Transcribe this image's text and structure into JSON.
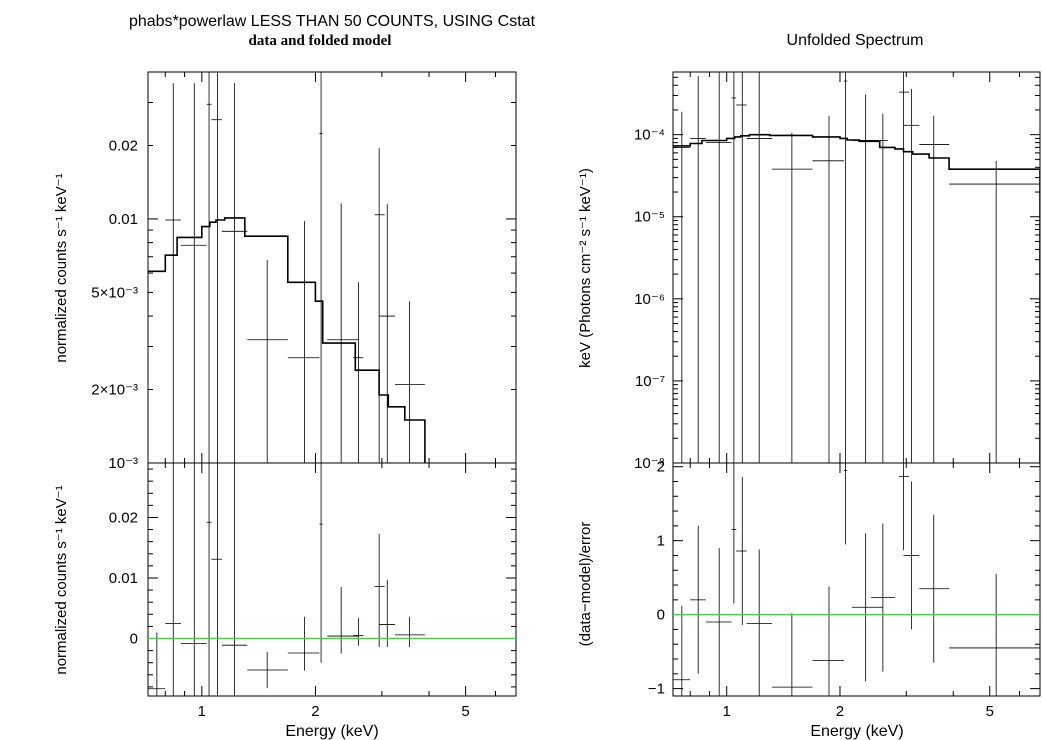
{
  "chart_data": [
    {
      "id": "folded-top",
      "type": "line",
      "title": "phabs*powerlaw LESS THAN 50 COUNTS, USING Cstat",
      "subtitle": "data and folded model",
      "xlabel": "",
      "ylabel": "normalized counts s⁻¹ keV⁻¹",
      "xscale": "log",
      "yscale": "log",
      "xlim": [
        0.72,
        6.8
      ],
      "ylim": [
        0.001,
        0.04
      ],
      "yticks": [
        {
          "v": 0.02,
          "label": "0.02"
        },
        {
          "v": 0.01,
          "label": "0.01"
        },
        {
          "v": 0.005,
          "label": "5×10⁻³"
        },
        {
          "v": 0.002,
          "label": "2×10⁻³"
        },
        {
          "v": 0.001,
          "label": "10⁻³"
        }
      ],
      "xticks": [
        {
          "v": 1,
          "label": ""
        },
        {
          "v": 2,
          "label": ""
        },
        {
          "v": 5,
          "label": ""
        }
      ],
      "series": [
        {
          "kind": "data",
          "color": "#000000",
          "points": [
            {
              "x": 0.76,
              "xlo": 0.72,
              "xhi": 0.8,
              "y": 0.0002,
              "ylo": 0.0001,
              "yhi": 0.0009
            },
            {
              "x": 0.84,
              "xlo": 0.8,
              "xhi": 0.88,
              "y": 0.0099,
              "ylo": 0.001,
              "yhi": 0.036
            },
            {
              "x": 0.955,
              "xlo": 0.88,
              "xhi": 1.03,
              "y": 0.0078,
              "ylo": 0.001,
              "yhi": 0.036
            },
            {
              "x": 1.045,
              "xlo": 1.03,
              "xhi": 1.06,
              "y": 0.0295,
              "ylo": 0.001,
              "yhi": 0.04
            },
            {
              "x": 1.1,
              "xlo": 1.06,
              "xhi": 1.13,
              "y": 0.0255,
              "ylo": 0.001,
              "yhi": 0.04
            },
            {
              "x": 1.22,
              "xlo": 1.13,
              "xhi": 1.32,
              "y": 0.0089,
              "ylo": 0.001,
              "yhi": 0.036
            },
            {
              "x": 1.49,
              "xlo": 1.32,
              "xhi": 1.69,
              "y": 0.0032,
              "ylo": 0.001,
              "yhi": 0.0068
            },
            {
              "x": 1.87,
              "xlo": 1.69,
              "xhi": 2.05,
              "y": 0.0027,
              "ylo": 0.001,
              "yhi": 0.0098
            },
            {
              "x": 2.07,
              "xlo": 2.05,
              "xhi": 2.09,
              "y": 0.0224,
              "ylo": 0.001,
              "yhi": 0.04
            },
            {
              "x": 2.34,
              "xlo": 2.15,
              "xhi": 2.6,
              "y": 0.0032,
              "ylo": 0.001,
              "yhi": 0.0116
            },
            {
              "x": 2.6,
              "xlo": 2.52,
              "xhi": 2.68,
              "y": 0.0027,
              "ylo": 0.001,
              "yhi": 0.0055
            },
            {
              "x": 2.95,
              "xlo": 2.87,
              "xhi": 3.05,
              "y": 0.0104,
              "ylo": 0.001,
              "yhi": 0.0195
            },
            {
              "x": 3.1,
              "xlo": 2.95,
              "xhi": 3.25,
              "y": 0.004,
              "ylo": 0.001,
              "yhi": 0.0115
            },
            {
              "x": 3.55,
              "xlo": 3.25,
              "xhi": 3.9,
              "y": 0.0021,
              "ylo": 0.001,
              "yhi": 0.0046
            }
          ]
        },
        {
          "kind": "model",
          "color": "#000000",
          "edges": [
            0.72,
            0.8,
            0.86,
            1.0,
            1.05,
            1.09,
            1.15,
            1.3,
            1.69,
            2.0,
            2.09,
            2.25,
            2.55,
            2.8,
            2.95,
            3.12,
            3.45,
            3.9
          ],
          "values": [
            0.0061,
            0.0071,
            0.0084,
            0.0093,
            0.0097,
            0.0099,
            0.0101,
            0.0085,
            0.0055,
            0.0046,
            0.0031,
            0.0031,
            0.0024,
            0.0024,
            0.0019,
            0.0017,
            0.0015
          ]
        }
      ]
    },
    {
      "id": "folded-bottom",
      "type": "line",
      "title": "",
      "xlabel": "Energy (keV)",
      "ylabel": "normalized counts s⁻¹ keV⁻¹",
      "xscale": "log",
      "yscale": "linear",
      "xlim": [
        0.72,
        6.8
      ],
      "ylim": [
        -0.0095,
        0.029
      ],
      "yticks": [
        {
          "v": 0.02,
          "label": "0.02"
        },
        {
          "v": 0.01,
          "label": "0.01"
        },
        {
          "v": 0,
          "label": "0"
        }
      ],
      "xticks": [
        {
          "v": 1,
          "label": "1"
        },
        {
          "v": 2,
          "label": "2"
        },
        {
          "v": 5,
          "label": "5"
        }
      ],
      "series": [
        {
          "kind": "data",
          "color": "#000000",
          "points": [
            {
              "x": 0.76,
              "xlo": 0.72,
              "xhi": 0.8,
              "y": -0.0083,
              "ylo": -0.012,
              "yhi": 0.001
            },
            {
              "x": 0.84,
              "xlo": 0.8,
              "xhi": 0.88,
              "y": 0.0025,
              "ylo": -0.012,
              "yhi": 0.029
            },
            {
              "x": 0.955,
              "xlo": 0.88,
              "xhi": 1.03,
              "y": -0.0008,
              "ylo": -0.012,
              "yhi": 0.029
            },
            {
              "x": 1.045,
              "xlo": 1.03,
              "xhi": 1.06,
              "y": 0.0192,
              "ylo": -0.012,
              "yhi": 0.029
            },
            {
              "x": 1.1,
              "xlo": 1.06,
              "xhi": 1.13,
              "y": 0.0131,
              "ylo": -0.012,
              "yhi": 0.029
            },
            {
              "x": 1.22,
              "xlo": 1.13,
              "xhi": 1.32,
              "y": -0.0011,
              "ylo": -0.012,
              "yhi": 0.029
            },
            {
              "x": 1.49,
              "xlo": 1.32,
              "xhi": 1.69,
              "y": -0.0052,
              "ylo": -0.0082,
              "yhi": -0.0022
            },
            {
              "x": 1.87,
              "xlo": 1.69,
              "xhi": 2.05,
              "y": -0.0024,
              "ylo": -0.0053,
              "yhi": 0.0036
            },
            {
              "x": 2.07,
              "xlo": 2.05,
              "xhi": 2.09,
              "y": 0.0189,
              "ylo": -0.004,
              "yhi": 0.029
            },
            {
              "x": 2.34,
              "xlo": 2.15,
              "xhi": 2.6,
              "y": 0.0004,
              "ylo": -0.0025,
              "yhi": 0.0085
            },
            {
              "x": 2.6,
              "xlo": 2.52,
              "xhi": 2.68,
              "y": 0.0005,
              "ylo": -0.0012,
              "yhi": 0.0034
            },
            {
              "x": 2.95,
              "xlo": 2.87,
              "xhi": 3.05,
              "y": 0.0086,
              "ylo": -0.0014,
              "yhi": 0.0173
            },
            {
              "x": 3.1,
              "xlo": 2.95,
              "xhi": 3.25,
              "y": 0.0023,
              "ylo": -0.0014,
              "yhi": 0.0097
            },
            {
              "x": 3.55,
              "xlo": 3.25,
              "xhi": 3.9,
              "y": 0.0006,
              "ylo": -0.0014,
              "yhi": 0.0036
            }
          ]
        },
        {
          "kind": "zero-line",
          "color": "#33dd33",
          "y": 0
        }
      ]
    },
    {
      "id": "unfolded-top",
      "type": "line",
      "title": "Unfolded Spectrum",
      "xlabel": "",
      "ylabel": "keV (Photons cm⁻² s⁻¹ keV⁻¹)",
      "xscale": "log",
      "yscale": "log",
      "xlim": [
        0.72,
        6.8
      ],
      "ylim": [
        1e-08,
        0.00058
      ],
      "yticks": [
        {
          "v": 0.0001,
          "label": "10⁻⁴"
        },
        {
          "v": 1e-05,
          "label": "10⁻⁵"
        },
        {
          "v": 1e-06,
          "label": "10⁻⁶"
        },
        {
          "v": 1e-07,
          "label": "10⁻⁷"
        },
        {
          "v": 1e-08,
          "label": "10⁻⁸"
        }
      ],
      "xticks": [
        {
          "v": 1,
          "label": ""
        },
        {
          "v": 2,
          "label": ""
        },
        {
          "v": 5,
          "label": ""
        }
      ],
      "series": [
        {
          "kind": "data",
          "color": "#000000",
          "points": [
            {
              "x": 0.76,
              "xlo": 0.72,
              "xhi": 0.8,
              "y": 7e-05,
              "ylo": 1e-08,
              "yhi": 0.00019
            },
            {
              "x": 0.84,
              "xlo": 0.8,
              "xhi": 0.88,
              "y": 9e-05,
              "ylo": 1e-08,
              "yhi": 0.00052
            },
            {
              "x": 0.955,
              "xlo": 0.88,
              "xhi": 1.03,
              "y": 8e-05,
              "ylo": 1e-08,
              "yhi": 0.00058
            },
            {
              "x": 1.045,
              "xlo": 1.03,
              "xhi": 1.06,
              "y": 0.00028,
              "ylo": 1e-08,
              "yhi": 0.00058
            },
            {
              "x": 1.1,
              "xlo": 1.06,
              "xhi": 1.13,
              "y": 0.00023,
              "ylo": 1e-08,
              "yhi": 0.00058
            },
            {
              "x": 1.22,
              "xlo": 1.13,
              "xhi": 1.32,
              "y": 9e-05,
              "ylo": 1e-08,
              "yhi": 0.00058
            },
            {
              "x": 1.49,
              "xlo": 1.32,
              "xhi": 1.69,
              "y": 3.8e-05,
              "ylo": 1e-08,
              "yhi": 0.000105
            },
            {
              "x": 1.87,
              "xlo": 1.69,
              "xhi": 2.05,
              "y": 4.8e-05,
              "ylo": 1e-08,
              "yhi": 0.00017
            },
            {
              "x": 2.07,
              "xlo": 2.05,
              "xhi": 2.09,
              "y": 0.00045,
              "ylo": 1e-08,
              "yhi": 0.00058
            },
            {
              "x": 2.34,
              "xlo": 2.15,
              "xhi": 2.6,
              "y": 8.5e-05,
              "ylo": 1e-08,
              "yhi": 0.00031
            },
            {
              "x": 2.6,
              "xlo": 2.52,
              "xhi": 2.68,
              "y": 8.5e-05,
              "ylo": 1e-08,
              "yhi": 0.00018
            },
            {
              "x": 2.95,
              "xlo": 2.87,
              "xhi": 3.05,
              "y": 0.00033,
              "ylo": 1e-08,
              "yhi": 0.00058
            },
            {
              "x": 3.1,
              "xlo": 2.95,
              "xhi": 3.25,
              "y": 0.00013,
              "ylo": 1e-08,
              "yhi": 0.00036
            },
            {
              "x": 3.55,
              "xlo": 3.25,
              "xhi": 3.9,
              "y": 7.6e-05,
              "ylo": 1e-08,
              "yhi": 0.00017
            },
            {
              "x": 5.2,
              "xlo": 3.9,
              "xhi": 6.8,
              "y": 2.5e-05,
              "ylo": 1e-08,
              "yhi": 4.8e-05
            }
          ]
        },
        {
          "kind": "model",
          "color": "#000000",
          "edges": [
            0.72,
            0.8,
            0.86,
            1.0,
            1.05,
            1.09,
            1.15,
            1.3,
            1.69,
            2.0,
            2.09,
            2.25,
            2.55,
            2.8,
            2.95,
            3.12,
            3.45,
            3.9,
            6.8
          ],
          "values": [
            7.3e-05,
            7.8e-05,
            8.5e-05,
            9e-05,
            9.4e-05,
            9.7e-05,
            0.0001,
            9.8e-05,
            9.4e-05,
            9e-05,
            8.6e-05,
            8.3e-05,
            7e-05,
            6.7e-05,
            6.2e-05,
            5.8e-05,
            5.2e-05,
            3.8e-05
          ]
        }
      ]
    },
    {
      "id": "unfolded-bottom",
      "type": "line",
      "title": "",
      "xlabel": "Energy (keV)",
      "ylabel": "(data−model)/error",
      "xscale": "log",
      "yscale": "linear",
      "xlim": [
        0.72,
        6.8
      ],
      "ylim": [
        -1.1,
        2.05
      ],
      "yticks": [
        {
          "v": 2,
          "label": "2"
        },
        {
          "v": 1,
          "label": "1"
        },
        {
          "v": 0,
          "label": "0"
        },
        {
          "v": -1,
          "label": "−1"
        }
      ],
      "xticks": [
        {
          "v": 1,
          "label": "1"
        },
        {
          "v": 2,
          "label": "2"
        },
        {
          "v": 5,
          "label": "5"
        }
      ],
      "series": [
        {
          "kind": "data",
          "color": "#000000",
          "points": [
            {
              "x": 0.76,
              "xlo": 0.72,
              "xhi": 0.8,
              "y": -0.88,
              "ylo": -1.1,
              "yhi": 0.12
            },
            {
              "x": 0.84,
              "xlo": 0.8,
              "xhi": 0.88,
              "y": 0.2,
              "ylo": -0.8,
              "yhi": 1.2
            },
            {
              "x": 0.955,
              "xlo": 0.88,
              "xhi": 1.03,
              "y": -0.1,
              "ylo": -1.1,
              "yhi": 0.9
            },
            {
              "x": 1.045,
              "xlo": 1.03,
              "xhi": 1.06,
              "y": 1.15,
              "ylo": 0.15,
              "yhi": 2.05
            },
            {
              "x": 1.1,
              "xlo": 1.06,
              "xhi": 1.13,
              "y": 0.86,
              "ylo": -0.14,
              "yhi": 1.86
            },
            {
              "x": 1.22,
              "xlo": 1.13,
              "xhi": 1.32,
              "y": -0.12,
              "ylo": -1.1,
              "yhi": 0.88
            },
            {
              "x": 1.49,
              "xlo": 1.32,
              "xhi": 1.69,
              "y": -0.98,
              "ylo": -1.1,
              "yhi": 0.02
            },
            {
              "x": 1.87,
              "xlo": 1.69,
              "xhi": 2.05,
              "y": -0.62,
              "ylo": -1.1,
              "yhi": 0.38
            },
            {
              "x": 2.07,
              "xlo": 2.05,
              "xhi": 2.09,
              "y": 1.95,
              "ylo": 0.95,
              "yhi": 2.05
            },
            {
              "x": 2.34,
              "xlo": 2.15,
              "xhi": 2.6,
              "y": 0.1,
              "ylo": -0.9,
              "yhi": 1.1
            },
            {
              "x": 2.6,
              "xlo": 2.42,
              "xhi": 2.8,
              "y": 0.23,
              "ylo": -0.77,
              "yhi": 1.23
            },
            {
              "x": 2.95,
              "xlo": 2.87,
              "xhi": 3.05,
              "y": 1.87,
              "ylo": 0.87,
              "yhi": 2.05
            },
            {
              "x": 3.1,
              "xlo": 2.95,
              "xhi": 3.25,
              "y": 0.8,
              "ylo": -0.2,
              "yhi": 1.8
            },
            {
              "x": 3.55,
              "xlo": 3.25,
              "xhi": 3.9,
              "y": 0.35,
              "ylo": -0.65,
              "yhi": 1.35
            },
            {
              "x": 5.2,
              "xlo": 3.9,
              "xhi": 6.8,
              "y": -0.45,
              "ylo": -1.1,
              "yhi": 0.55
            }
          ]
        },
        {
          "kind": "zero-line",
          "color": "#33dd33",
          "y": 0
        }
      ]
    }
  ]
}
